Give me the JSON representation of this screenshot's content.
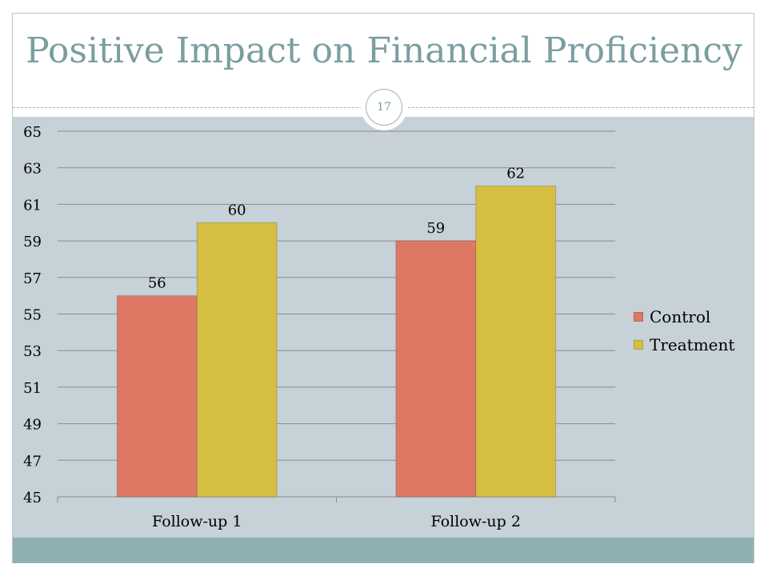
{
  "slide": {
    "title": "Positive Impact on Financial Proficiency",
    "page_number": "17"
  },
  "colors": {
    "title": "#7a9e9f",
    "panel": "#c6d1d8",
    "footer": "#8eb0b0",
    "control": "#de7865",
    "treatment": "#d6be42"
  },
  "chart_data": {
    "type": "bar",
    "categories": [
      "Follow-up 1",
      "Follow-up 2"
    ],
    "series": [
      {
        "name": "Control",
        "values": [
          56,
          59
        ],
        "color": "#de7865"
      },
      {
        "name": "Treatment",
        "values": [
          60,
          62
        ],
        "color": "#d6be42"
      }
    ],
    "ylim": [
      45,
      65
    ],
    "yticks": [
      45,
      47,
      49,
      51,
      53,
      55,
      57,
      59,
      61,
      63,
      65
    ],
    "data_labels": true,
    "grid": true,
    "legend": "right"
  }
}
